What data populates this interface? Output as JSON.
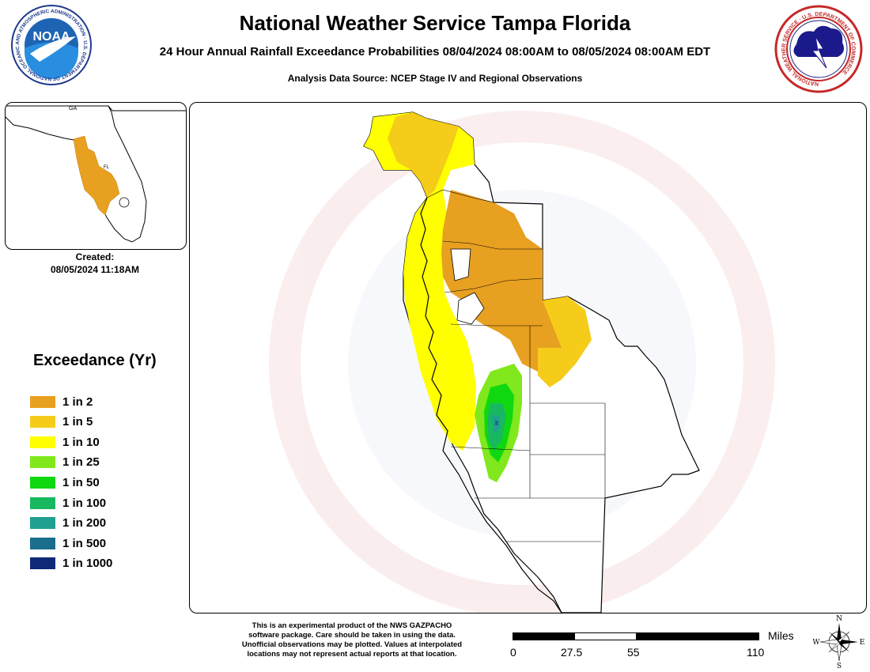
{
  "header": {
    "title": "National Weather Service Tampa Florida",
    "subtitle": "24 Hour Annual Rainfall Exceedance Probabilities 08/04/2024 08:00AM to 08/05/2024 08:00AM EDT",
    "source": "Analysis Data Source: NCEP Stage IV and Regional Observations"
  },
  "logos": {
    "noaa": {
      "text": "NOAA",
      "ring_text": "NATIONAL OCEANIC AND ATMOSPHERIC ADMINISTRATION · U.S. DEPARTMENT OF COMMERCE"
    },
    "nws": {
      "ring_text": "NATIONAL WEATHER SERVICE · U.S. DEPARTMENT OF COMMERCE"
    }
  },
  "inset": {
    "label_ga": "GA",
    "label_fl": "FL"
  },
  "created": {
    "label": "Created:",
    "value": "08/05/2024 11:18AM"
  },
  "legend": {
    "title": "Exceedance (Yr)",
    "items": [
      {
        "label": "1 in 2",
        "color": "#e8a020"
      },
      {
        "label": "1 in 5",
        "color": "#f5cc1a"
      },
      {
        "label": "1 in 10",
        "color": "#ffff00"
      },
      {
        "label": "1 in 25",
        "color": "#80e81c"
      },
      {
        "label": "1 in 50",
        "color": "#10d810"
      },
      {
        "label": "1 in 100",
        "color": "#18b860"
      },
      {
        "label": "1 in 200",
        "color": "#20a090"
      },
      {
        "label": "1 in 500",
        "color": "#1a6e8c"
      },
      {
        "label": "1 in 1000",
        "color": "#102878"
      }
    ]
  },
  "disclaimer": {
    "lines": [
      "This is an experimental product of the NWS GAZPACHO",
      "software package. Care should be taken in using the data.",
      "Unofficial observations may be plotted. Values at interpolated",
      "locations may not represent actual reports at that location."
    ]
  },
  "scale": {
    "unit": "Miles",
    "ticks": [
      "0",
      "27.5",
      "55",
      "110"
    ]
  },
  "compass": {
    "n": "N",
    "s": "S",
    "e": "E",
    "w": "W"
  }
}
